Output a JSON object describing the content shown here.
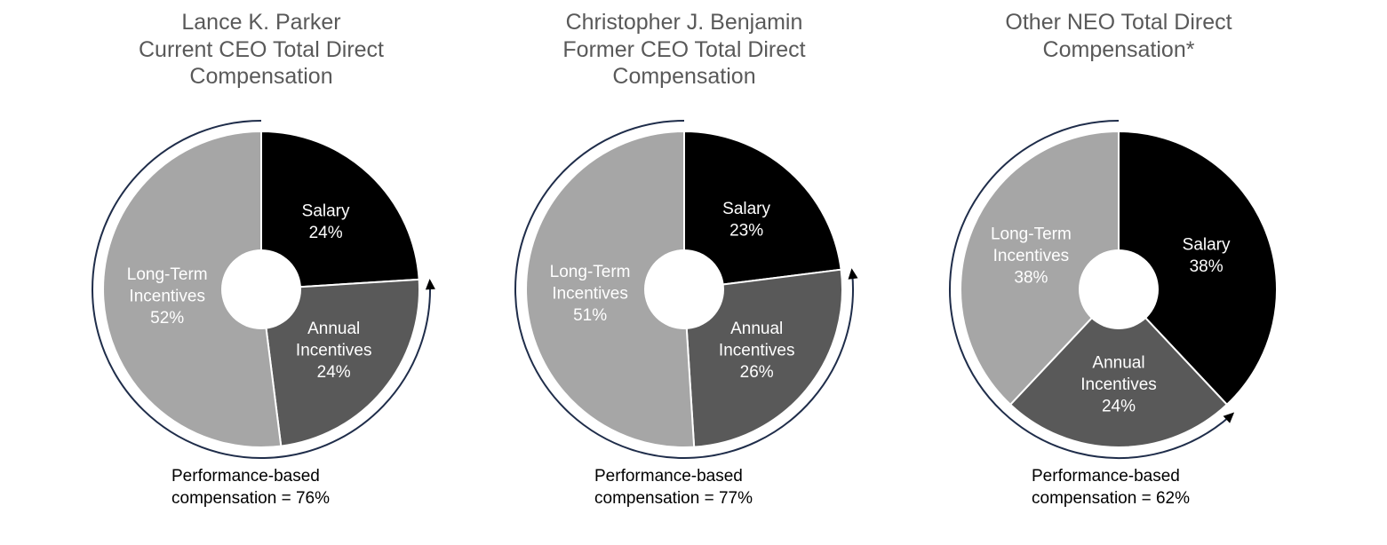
{
  "chart_data": [
    {
      "type": "pie",
      "title_lines": [
        "Lance K. Parker",
        "Current CEO Total Direct",
        "Compensation"
      ],
      "categories": [
        "Salary",
        "Annual Incentives",
        "Long-Term Incentives"
      ],
      "values": [
        24,
        24,
        52
      ],
      "labels": [
        [
          "Salary",
          "24%"
        ],
        [
          "Annual",
          "Incentives",
          "24%"
        ],
        [
          "Long-Term",
          "Incentives",
          "52%"
        ]
      ],
      "colors": [
        "#000000",
        "#595959",
        "#a6a6a6"
      ],
      "label_colors": [
        "#ffffff",
        "#ffffff",
        "#ffffff"
      ],
      "note_lines": [
        "Performance-based",
        "compensation  = 76%"
      ],
      "performance_based_percent": 76
    },
    {
      "type": "pie",
      "title_lines": [
        "Christopher J. Benjamin",
        "Former CEO Total Direct",
        "Compensation"
      ],
      "categories": [
        "Salary",
        "Annual Incentives",
        "Long-Term Incentives"
      ],
      "values": [
        23,
        26,
        51
      ],
      "labels": [
        [
          "Salary",
          "23%"
        ],
        [
          "Annual",
          "Incentives",
          "26%"
        ],
        [
          "Long-Term",
          "Incentives",
          "51%"
        ]
      ],
      "colors": [
        "#000000",
        "#595959",
        "#a6a6a6"
      ],
      "label_colors": [
        "#ffffff",
        "#ffffff",
        "#ffffff"
      ],
      "note_lines": [
        "Performance-based",
        "compensation  = 77%"
      ],
      "performance_based_percent": 77
    },
    {
      "type": "pie",
      "title_lines": [
        "Other NEO Total Direct",
        "Compensation*"
      ],
      "categories": [
        "Salary",
        "Annual Incentives",
        "Long-Term Incentives"
      ],
      "values": [
        38,
        24,
        38
      ],
      "labels": [
        [
          "Salary",
          "38%"
        ],
        [
          "Annual",
          "Incentives",
          "24%"
        ],
        [
          "Long-Term",
          "Incentives",
          "38%"
        ]
      ],
      "colors": [
        "#000000",
        "#595959",
        "#a6a6a6"
      ],
      "label_colors": [
        "#ffffff",
        "#ffffff",
        "#ffffff"
      ],
      "note_lines": [
        "Performance-based",
        "compensation  = 62%"
      ],
      "performance_based_percent": 62
    }
  ],
  "colors": {
    "arc": "#1f2d4a",
    "slice_border": "#ffffff",
    "title": "#595959"
  }
}
